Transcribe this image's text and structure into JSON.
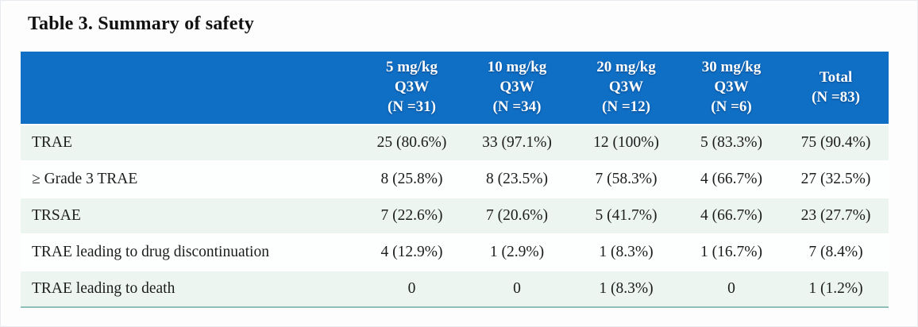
{
  "page": {
    "title": "Table 3. Summary of safety"
  },
  "table": {
    "columns": [
      {
        "lines": [
          "5 mg/kg",
          "Q3W",
          "(N =31)"
        ]
      },
      {
        "lines": [
          "10 mg/kg",
          "Q3W",
          "(N =34)"
        ]
      },
      {
        "lines": [
          "20 mg/kg",
          "Q3W",
          "(N =12)"
        ]
      },
      {
        "lines": [
          "30 mg/kg",
          "Q3W",
          "(N =6)"
        ]
      },
      {
        "lines": [
          "Total",
          "(N =83)"
        ]
      }
    ],
    "rows": [
      {
        "label": "TRAE",
        "values": [
          "25 (80.6%)",
          "33 (97.1%)",
          "12 (100%)",
          "5 (83.3%)",
          "75 (90.4%)"
        ]
      },
      {
        "label": "≥ Grade 3 TRAE",
        "values": [
          "8 (25.8%)",
          "8 (23.5%)",
          "7 (58.3%)",
          "4 (66.7%)",
          "27 (32.5%)"
        ]
      },
      {
        "label": "TRSAE",
        "values": [
          "7 (22.6%)",
          "7 (20.6%)",
          "5 (41.7%)",
          "4 (66.7%)",
          "23 (27.7%)"
        ]
      },
      {
        "label": "TRAE leading to drug discontinuation",
        "values": [
          "4 (12.9%)",
          "1 (2.9%)",
          "1 (8.3%)",
          "1 (16.7%)",
          "7 (8.4%)"
        ]
      },
      {
        "label": "TRAE leading to death",
        "values": [
          "0",
          "0",
          "1 (8.3%)",
          "0",
          "1 (1.2%)"
        ]
      }
    ],
    "colors": {
      "header_bg": "#0f6fc5",
      "header_text": "#ffffff",
      "row_alt_bg": "#edf5f1",
      "row_bg": "#fdfefe",
      "bottom_rule": "#8fc0b8"
    }
  }
}
